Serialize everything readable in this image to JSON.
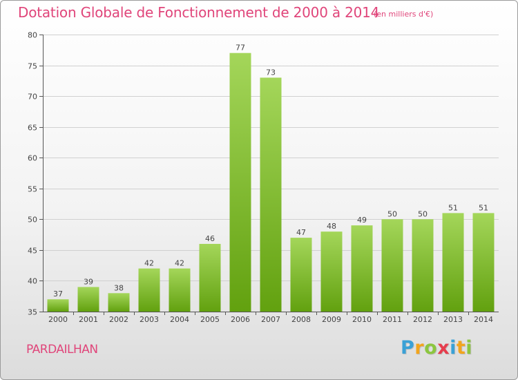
{
  "title": "Dotation Globale de Fonctionnement de 2000 à 2014",
  "subtitle": "(en milliers d'€)",
  "commune": "PARDAILHAN",
  "logo": {
    "letters": [
      "P",
      "r",
      "o",
      "x",
      "i",
      "t",
      "i"
    ],
    "colors": [
      "#3aa1d6",
      "#f2a51d",
      "#8cc63f",
      "#e63d4d",
      "#3aa1d6",
      "#f2a51d",
      "#8cc63f"
    ]
  },
  "colors": {
    "bar_light": "#a4d65a",
    "bar_dark": "#62a10f",
    "title": "#e0457a",
    "grid": "#d0d0d0"
  },
  "chart_data": {
    "type": "bar",
    "title": "Dotation Globale de Fonctionnement de 2000 à 2014",
    "ylabel": "en milliers d'€",
    "xlabel": "",
    "categories": [
      "2000",
      "2001",
      "2002",
      "2003",
      "2004",
      "2005",
      "2006",
      "2007",
      "2008",
      "2009",
      "2010",
      "2011",
      "2012",
      "2013",
      "2014"
    ],
    "values": [
      37,
      39,
      38,
      42,
      42,
      46,
      77,
      73,
      47,
      48,
      49,
      50,
      50,
      51,
      51
    ],
    "ylim": [
      35,
      80
    ],
    "yticks": [
      35,
      40,
      45,
      50,
      55,
      60,
      65,
      70,
      75,
      80
    ],
    "grid": true,
    "legend": "none"
  }
}
